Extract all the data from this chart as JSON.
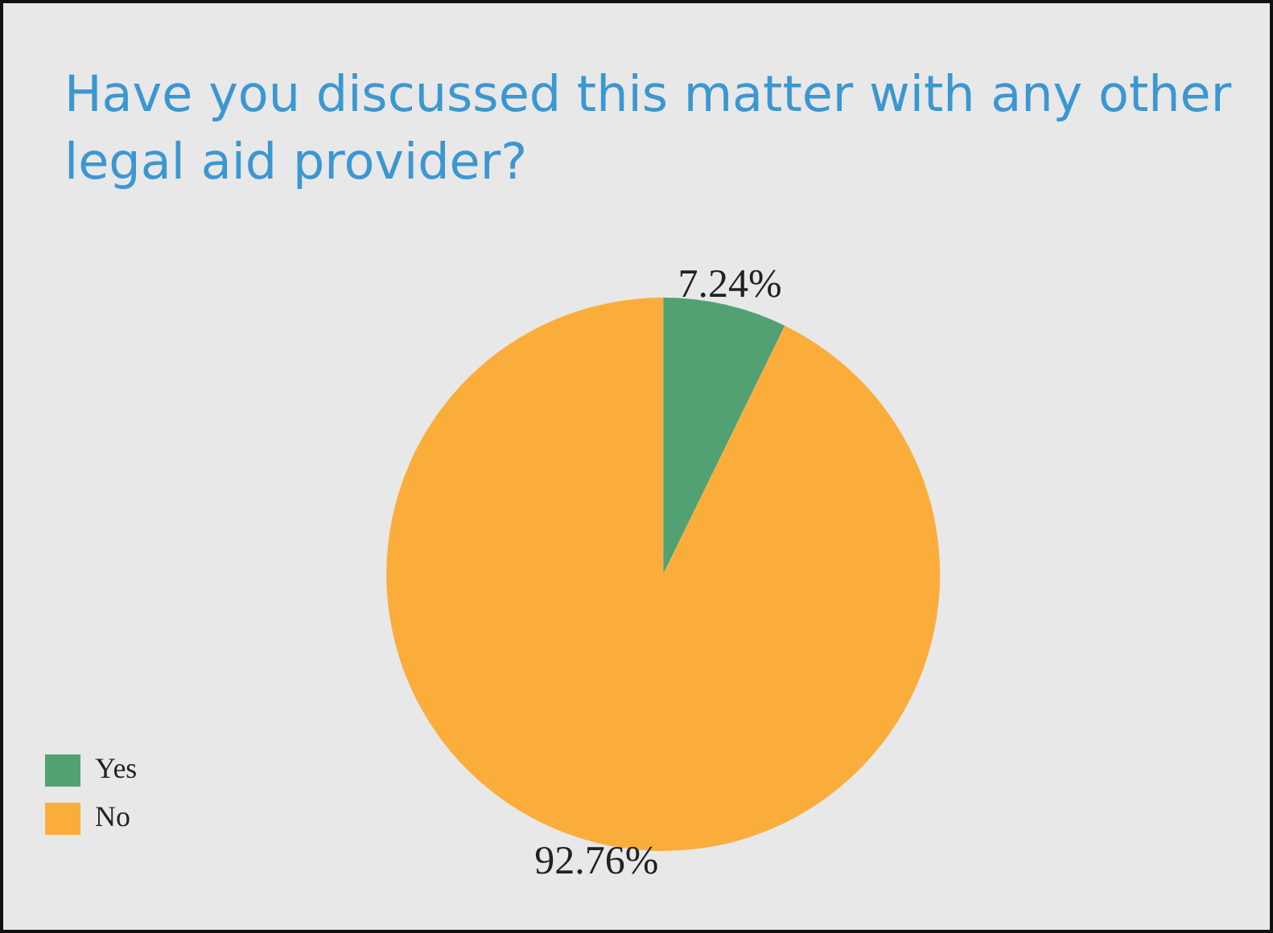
{
  "chart_data": {
    "type": "pie",
    "title": "Have you discussed this matter with any other legal aid provider?",
    "categories": [
      "Yes",
      "No"
    ],
    "values": [
      7.24,
      92.76
    ],
    "value_labels": [
      "7.24%",
      "92.76%"
    ],
    "colors": [
      "#52a173",
      "#fbad3c"
    ],
    "legend": "bottom left"
  }
}
